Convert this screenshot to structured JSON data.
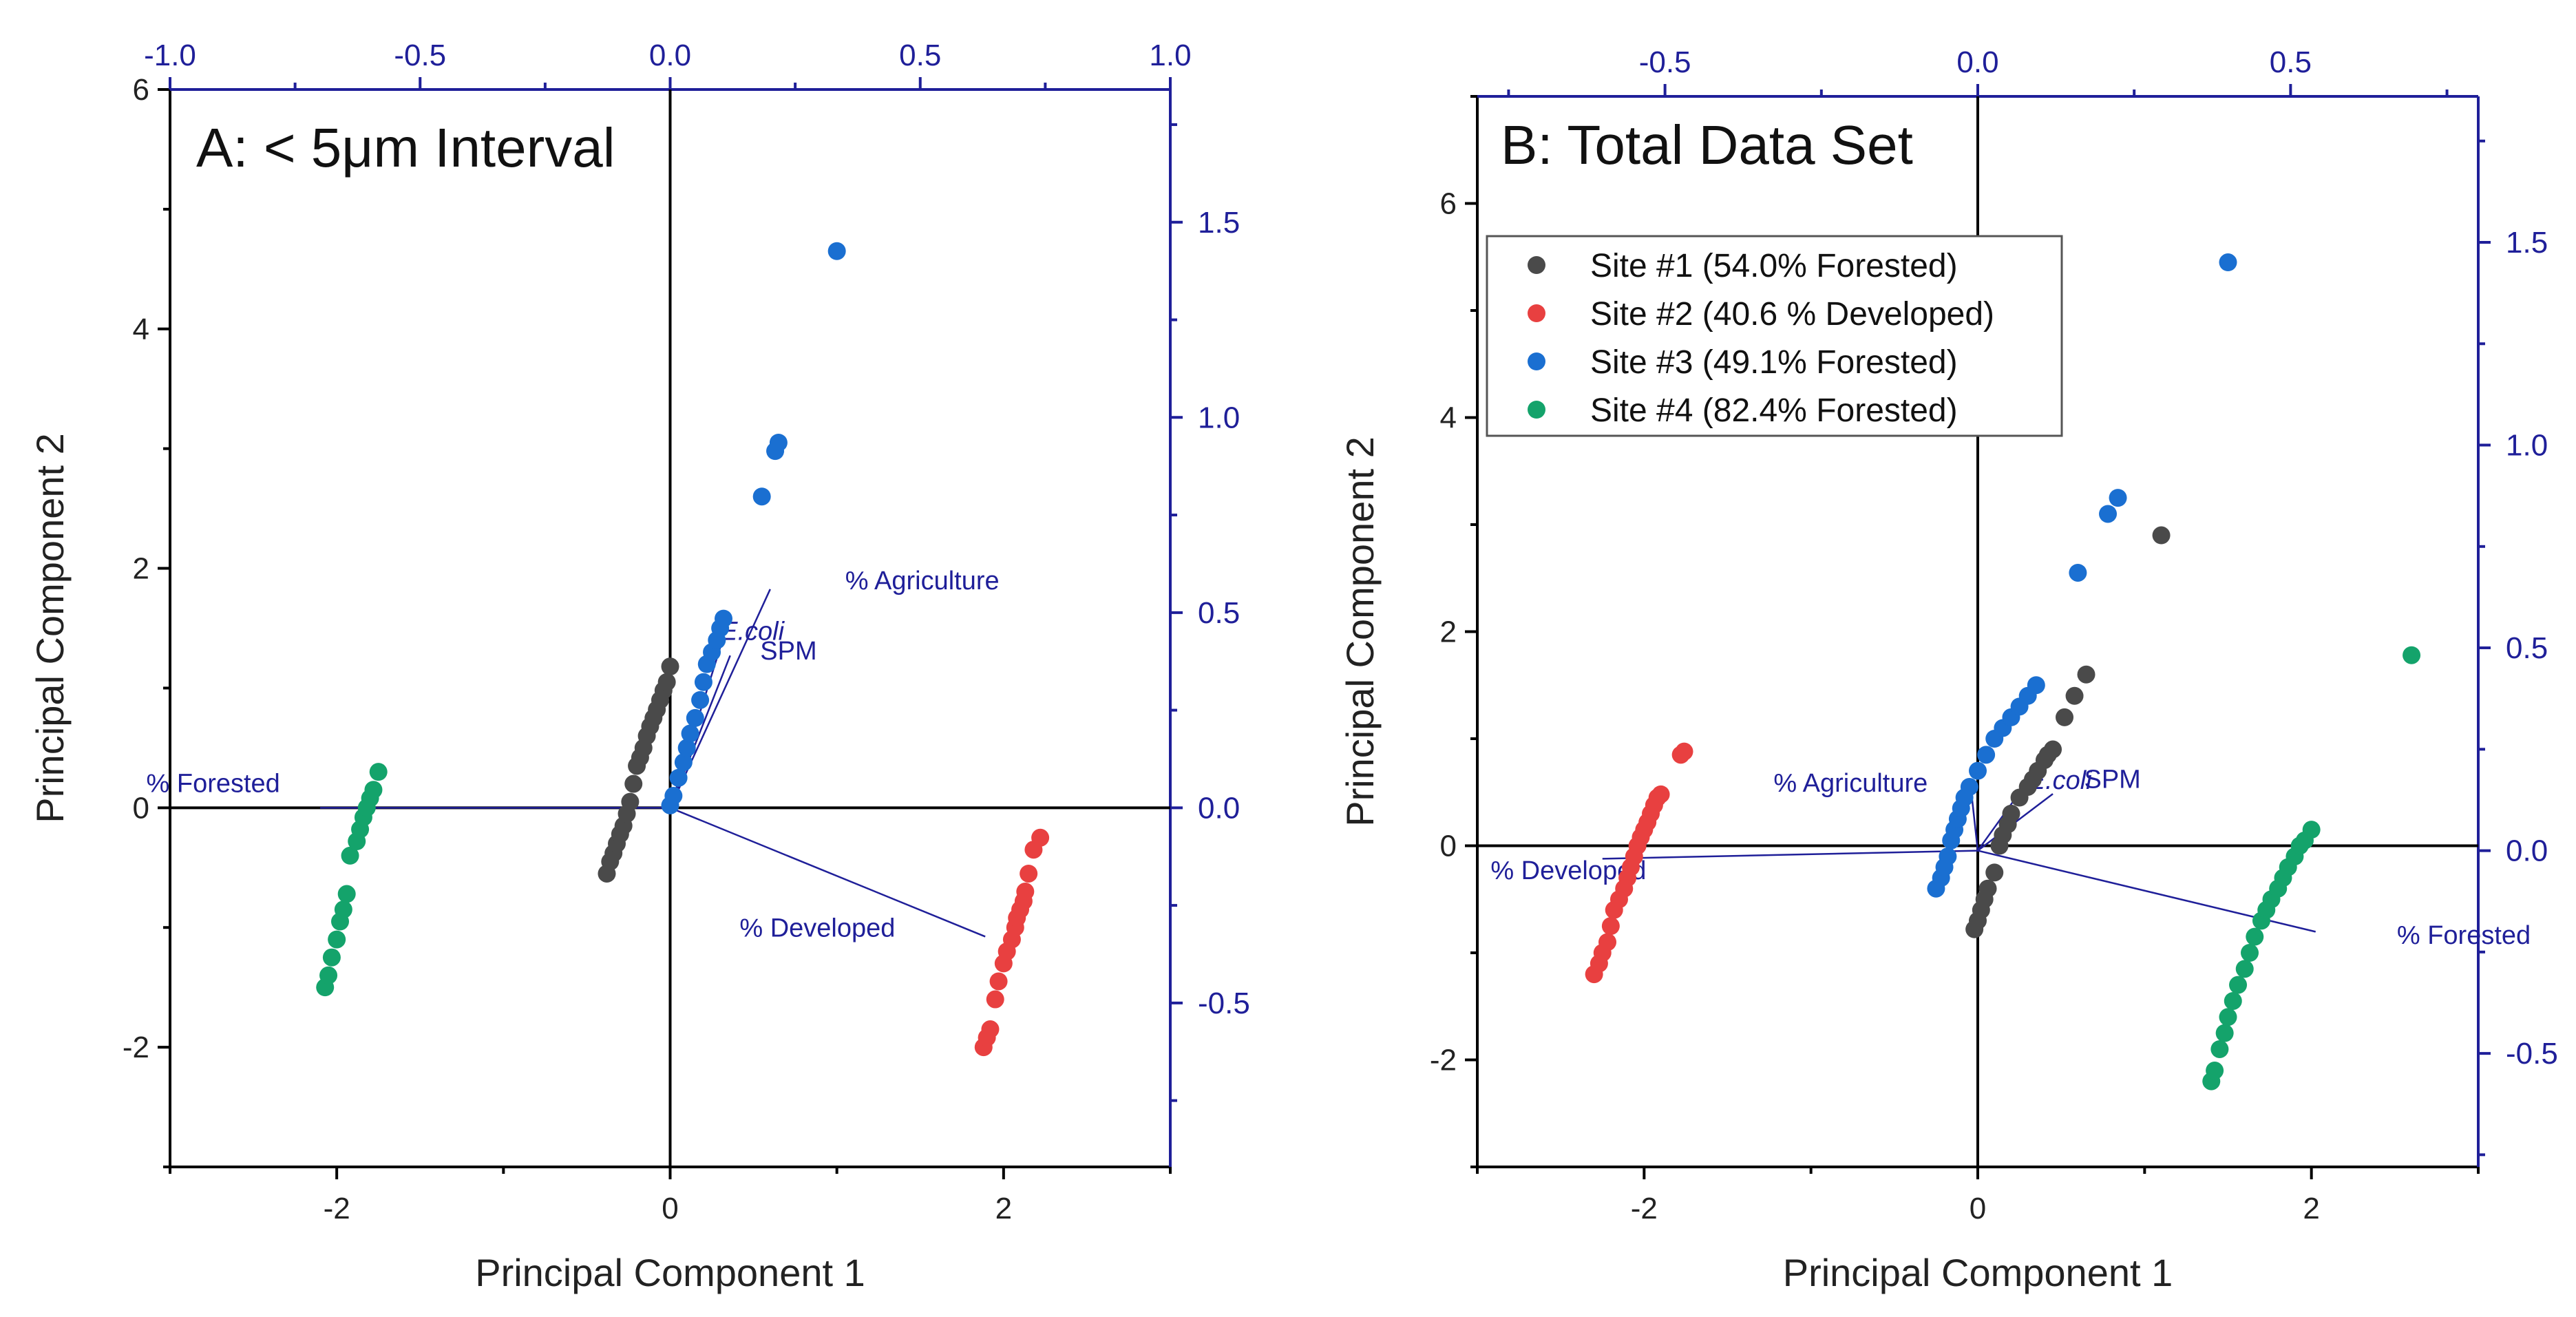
{
  "chart_data": [
    {
      "type": "scatter",
      "title": "A: < 5μm Interval",
      "xlabel": "Principal Component 1",
      "ylabel": "Principal Component 2",
      "xlim": [
        -3,
        3
      ],
      "ylim": [
        -3,
        6
      ],
      "x_ticks": [
        -2,
        0,
        2
      ],
      "x_tick_labels": [
        "-2",
        "0",
        "2"
      ],
      "y_ticks": [
        -2,
        0,
        2,
        4,
        6
      ],
      "y_tick_labels": [
        "-2",
        "0",
        "2",
        "4",
        "6"
      ],
      "top_axis": {
        "lim": [
          -1.0,
          1.0
        ],
        "ticks": [
          -1.0,
          -0.5,
          0.0,
          0.5,
          1.0
        ],
        "tick_labels": [
          "-1.0",
          "-0.5",
          "0.0",
          "0.5",
          "1.0"
        ]
      },
      "right_axis": {
        "lim": [
          -0.92,
          1.84
        ],
        "ticks": [
          -0.5,
          0.0,
          0.5,
          1.0,
          1.5
        ],
        "tick_labels": [
          "-0.5",
          "0.0",
          "0.5",
          "1.0",
          "1.5"
        ]
      },
      "loadings": [
        {
          "label": "% Agriculture",
          "x": 0.2,
          "y": 0.56,
          "italic": false,
          "label_anchor": [
            0.35,
            0.56
          ]
        },
        {
          "label": "E.coli",
          "x": 0.1,
          "y": 0.41,
          "italic": true,
          "label_anchor": [
            0.1,
            0.43
          ]
        },
        {
          "label": "SPM",
          "x": 0.12,
          "y": 0.39,
          "italic": false,
          "label_anchor": [
            0.18,
            0.38
          ]
        },
        {
          "label": "% Forested",
          "x": -0.7,
          "y": 0.0,
          "italic": false,
          "label_anchor": [
            -0.78,
            0.04
          ]
        },
        {
          "label": "% Developed",
          "x": 0.63,
          "y": -0.33,
          "italic": false,
          "label_anchor": [
            0.45,
            -0.33
          ]
        }
      ],
      "series": [
        {
          "name": "Site #1",
          "color": "#4a4a4a",
          "x": [
            -0.38,
            -0.36,
            -0.34,
            -0.32,
            -0.3,
            -0.28,
            -0.26,
            -0.24,
            -0.22,
            -0.2,
            -0.18,
            -0.16,
            -0.14,
            -0.12,
            -0.1,
            -0.08,
            -0.06,
            -0.04,
            -0.02,
            0.0
          ],
          "y": [
            -0.55,
            -0.45,
            -0.38,
            -0.3,
            -0.22,
            -0.15,
            -0.05,
            0.05,
            0.2,
            0.35,
            0.42,
            0.5,
            0.6,
            0.68,
            0.75,
            0.82,
            0.9,
            0.98,
            1.05,
            1.18
          ]
        },
        {
          "name": "Site #2",
          "color": "#e84040",
          "x": [
            1.88,
            1.9,
            1.92,
            1.95,
            1.97,
            2.0,
            2.02,
            2.05,
            2.07,
            2.08,
            2.1,
            2.12,
            2.13,
            2.15,
            2.18,
            2.22
          ],
          "y": [
            -2.0,
            -1.92,
            -1.85,
            -1.6,
            -1.45,
            -1.3,
            -1.2,
            -1.1,
            -1.0,
            -0.92,
            -0.85,
            -0.78,
            -0.7,
            -0.55,
            -0.35,
            -0.25
          ]
        },
        {
          "name": "Site #3",
          "color": "#1a6fd1",
          "x": [
            0.0,
            0.02,
            0.05,
            0.08,
            0.1,
            0.12,
            0.15,
            0.18,
            0.2,
            0.22,
            0.25,
            0.28,
            0.3,
            0.32,
            0.55,
            0.63,
            0.65,
            1.0
          ],
          "y": [
            0.02,
            0.1,
            0.25,
            0.38,
            0.5,
            0.62,
            0.75,
            0.9,
            1.05,
            1.2,
            1.3,
            1.4,
            1.5,
            1.58,
            2.6,
            2.98,
            3.05,
            4.65
          ]
        },
        {
          "name": "Site #4",
          "color": "#14a36b",
          "x": [
            -2.07,
            -2.05,
            -2.03,
            -2.0,
            -1.98,
            -1.96,
            -1.94,
            -1.92,
            -1.88,
            -1.86,
            -1.84,
            -1.82,
            -1.8,
            -1.78,
            -1.75
          ],
          "y": [
            -1.5,
            -1.4,
            -1.25,
            -1.1,
            -0.95,
            -0.85,
            -0.72,
            -0.4,
            -0.28,
            -0.18,
            -0.08,
            0.0,
            0.08,
            0.15,
            0.3
          ]
        }
      ]
    },
    {
      "type": "scatter",
      "title": "B: Total Data Set",
      "xlabel": "Principal Component 1",
      "ylabel": "Principal Component 2",
      "xlim": [
        -3,
        3
      ],
      "ylim": [
        -3,
        7
      ],
      "x_ticks": [
        -2,
        0,
        2
      ],
      "x_tick_labels": [
        "-2",
        "0",
        "2"
      ],
      "y_ticks": [
        -2,
        0,
        2,
        4,
        6
      ],
      "y_tick_labels": [
        "-2",
        "0",
        "2",
        "4",
        "6"
      ],
      "top_axis": {
        "lim": [
          -0.8,
          0.8
        ],
        "ticks": [
          -0.5,
          0.0,
          0.5
        ],
        "tick_labels": [
          "-0.5",
          "0.0",
          "0.5"
        ]
      },
      "right_axis": {
        "lim": [
          -0.78,
          1.86
        ],
        "ticks": [
          -0.5,
          0.0,
          0.5,
          1.0,
          1.5
        ],
        "tick_labels": [
          "-0.5",
          "0.0",
          "0.5",
          "1.0",
          "1.5"
        ]
      },
      "legend": {
        "position": "upper-left",
        "items": [
          {
            "label": "Site #1 (54.0% Forested)",
            "color": "#4a4a4a"
          },
          {
            "label": "Site #2 (40.6 % Developed)",
            "color": "#e84040"
          },
          {
            "label": "Site #3 (49.1% Forested)",
            "color": "#1a6fd1"
          },
          {
            "label": "Site #4 (82.4% Forested)",
            "color": "#14a36b"
          }
        ]
      },
      "loadings": [
        {
          "label": "% Agriculture",
          "x": -0.01,
          "y": 0.14,
          "italic": false,
          "label_anchor": [
            -0.08,
            0.145
          ]
        },
        {
          "label": "E.coli",
          "x": 0.07,
          "y": 0.15,
          "italic": true,
          "label_anchor": [
            0.08,
            0.152
          ]
        },
        {
          "label": "SPM",
          "x": 0.12,
          "y": 0.14,
          "italic": false,
          "label_anchor": [
            0.17,
            0.155
          ]
        },
        {
          "label": "% Developed",
          "x": -0.6,
          "y": -0.02,
          "italic": false,
          "label_anchor": [
            -0.53,
            -0.07
          ]
        },
        {
          "label": "% Forested",
          "x": 0.54,
          "y": -0.2,
          "italic": false,
          "label_anchor": [
            0.67,
            -0.23
          ]
        }
      ],
      "series": [
        {
          "name": "Site #1",
          "color": "#4a4a4a",
          "x": [
            -0.02,
            0.0,
            0.02,
            0.04,
            0.06,
            0.1,
            0.13,
            0.15,
            0.18,
            0.2,
            0.25,
            0.3,
            0.33,
            0.36,
            0.4,
            0.42,
            0.45,
            0.52,
            0.58,
            0.65,
            1.1
          ],
          "y": [
            -0.78,
            -0.7,
            -0.6,
            -0.5,
            -0.4,
            -0.25,
            0.0,
            0.1,
            0.2,
            0.3,
            0.45,
            0.55,
            0.62,
            0.7,
            0.8,
            0.85,
            0.9,
            1.2,
            1.4,
            1.6,
            2.9
          ]
        },
        {
          "name": "Site #2",
          "color": "#e84040",
          "x": [
            -2.3,
            -2.27,
            -2.25,
            -2.22,
            -2.2,
            -2.18,
            -2.15,
            -2.12,
            -2.1,
            -2.08,
            -2.06,
            -2.04,
            -2.02,
            -2.0,
            -1.98,
            -1.96,
            -1.94,
            -1.92,
            -1.9,
            -1.78,
            -1.76
          ],
          "y": [
            -1.2,
            -1.1,
            -1.0,
            -0.9,
            -0.75,
            -0.6,
            -0.5,
            -0.4,
            -0.3,
            -0.2,
            -0.1,
            0.0,
            0.08,
            0.15,
            0.22,
            0.3,
            0.38,
            0.45,
            0.48,
            0.85,
            0.88
          ]
        },
        {
          "name": "Site #3",
          "color": "#1a6fd1",
          "x": [
            -0.25,
            -0.22,
            -0.2,
            -0.18,
            -0.16,
            -0.14,
            -0.12,
            -0.1,
            -0.08,
            -0.05,
            0.0,
            0.05,
            0.1,
            0.15,
            0.2,
            0.25,
            0.3,
            0.35,
            0.6,
            0.78,
            0.84,
            1.5
          ],
          "y": [
            -0.4,
            -0.3,
            -0.2,
            -0.1,
            0.05,
            0.15,
            0.25,
            0.35,
            0.45,
            0.55,
            0.7,
            0.85,
            1.0,
            1.1,
            1.2,
            1.3,
            1.4,
            1.5,
            2.55,
            3.1,
            3.25,
            5.45
          ]
        },
        {
          "name": "Site #4",
          "color": "#14a36b",
          "x": [
            1.4,
            1.42,
            1.45,
            1.48,
            1.5,
            1.53,
            1.56,
            1.6,
            1.63,
            1.66,
            1.7,
            1.73,
            1.76,
            1.8,
            1.83,
            1.86,
            1.9,
            1.93,
            1.96,
            2.0,
            2.6
          ],
          "y": [
            -2.2,
            -2.1,
            -1.9,
            -1.75,
            -1.6,
            -1.45,
            -1.3,
            -1.15,
            -1.0,
            -0.85,
            -0.7,
            -0.6,
            -0.5,
            -0.4,
            -0.3,
            -0.2,
            -0.1,
            0.0,
            0.05,
            0.15,
            1.78
          ]
        }
      ]
    }
  ]
}
